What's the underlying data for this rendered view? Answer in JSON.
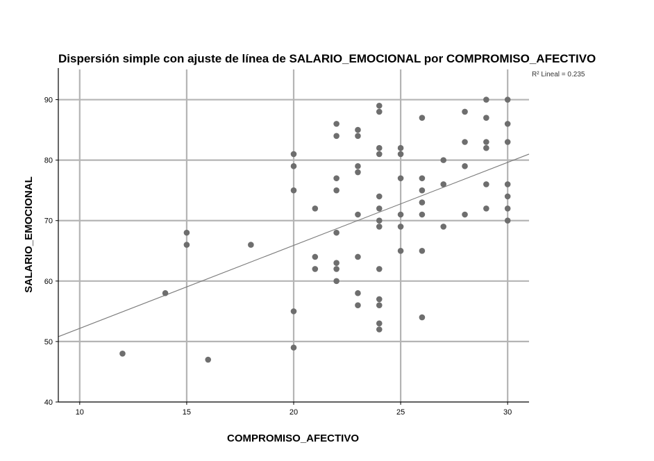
{
  "chart_data": {
    "type": "scatter",
    "title": "Dispersión simple con ajuste de línea de SALARIO_EMOCIONAL por COMPROMISO_AFECTIVO",
    "xlabel": "COMPROMISO_AFECTIVO",
    "ylabel": "SALARIO_EMOCIONAL",
    "xlim": [
      9,
      31
    ],
    "ylim": [
      40,
      95
    ],
    "xticks": [
      "10",
      "15",
      "20",
      "25",
      "30"
    ],
    "yticks": [
      "40",
      "50",
      "60",
      "70",
      "80",
      "90"
    ],
    "grid": true,
    "r2_label": "R² Lineal = 0.235",
    "fit_line": {
      "x": [
        9,
        31
      ],
      "y": [
        50.8,
        81.0
      ]
    },
    "point_color": "#6e6e6e",
    "points": [
      {
        "x": 12,
        "y": 48
      },
      {
        "x": 14,
        "y": 58
      },
      {
        "x": 15,
        "y": 68
      },
      {
        "x": 15,
        "y": 66
      },
      {
        "x": 16,
        "y": 47
      },
      {
        "x": 18,
        "y": 66
      },
      {
        "x": 20,
        "y": 81
      },
      {
        "x": 20,
        "y": 79
      },
      {
        "x": 20,
        "y": 75
      },
      {
        "x": 20,
        "y": 55
      },
      {
        "x": 20,
        "y": 49
      },
      {
        "x": 21,
        "y": 72
      },
      {
        "x": 21,
        "y": 64
      },
      {
        "x": 21,
        "y": 62
      },
      {
        "x": 22,
        "y": 86
      },
      {
        "x": 22,
        "y": 84
      },
      {
        "x": 22,
        "y": 77
      },
      {
        "x": 22,
        "y": 75
      },
      {
        "x": 22,
        "y": 68
      },
      {
        "x": 22,
        "y": 63
      },
      {
        "x": 22,
        "y": 62
      },
      {
        "x": 22,
        "y": 60
      },
      {
        "x": 23,
        "y": 85
      },
      {
        "x": 23,
        "y": 84
      },
      {
        "x": 23,
        "y": 79
      },
      {
        "x": 23,
        "y": 78
      },
      {
        "x": 23,
        "y": 71
      },
      {
        "x": 23,
        "y": 64
      },
      {
        "x": 23,
        "y": 58
      },
      {
        "x": 23,
        "y": 56
      },
      {
        "x": 24,
        "y": 89
      },
      {
        "x": 24,
        "y": 88
      },
      {
        "x": 24,
        "y": 82
      },
      {
        "x": 24,
        "y": 81
      },
      {
        "x": 24,
        "y": 74
      },
      {
        "x": 24,
        "y": 72
      },
      {
        "x": 24,
        "y": 70
      },
      {
        "x": 24,
        "y": 69
      },
      {
        "x": 24,
        "y": 62
      },
      {
        "x": 24,
        "y": 57
      },
      {
        "x": 24,
        "y": 56
      },
      {
        "x": 24,
        "y": 53
      },
      {
        "x": 24,
        "y": 52
      },
      {
        "x": 25,
        "y": 82
      },
      {
        "x": 25,
        "y": 81
      },
      {
        "x": 25,
        "y": 77
      },
      {
        "x": 25,
        "y": 71
      },
      {
        "x": 25,
        "y": 69
      },
      {
        "x": 25,
        "y": 65
      },
      {
        "x": 26,
        "y": 87
      },
      {
        "x": 26,
        "y": 77
      },
      {
        "x": 26,
        "y": 75
      },
      {
        "x": 26,
        "y": 73
      },
      {
        "x": 26,
        "y": 71
      },
      {
        "x": 26,
        "y": 65
      },
      {
        "x": 26,
        "y": 54
      },
      {
        "x": 27,
        "y": 80
      },
      {
        "x": 27,
        "y": 76
      },
      {
        "x": 27,
        "y": 69
      },
      {
        "x": 28,
        "y": 88
      },
      {
        "x": 28,
        "y": 83
      },
      {
        "x": 28,
        "y": 79
      },
      {
        "x": 28,
        "y": 71
      },
      {
        "x": 29,
        "y": 90
      },
      {
        "x": 29,
        "y": 87
      },
      {
        "x": 29,
        "y": 83
      },
      {
        "x": 29,
        "y": 82
      },
      {
        "x": 29,
        "y": 76
      },
      {
        "x": 29,
        "y": 72
      },
      {
        "x": 30,
        "y": 90
      },
      {
        "x": 30,
        "y": 86
      },
      {
        "x": 30,
        "y": 83
      },
      {
        "x": 30,
        "y": 76
      },
      {
        "x": 30,
        "y": 74
      },
      {
        "x": 30,
        "y": 72
      },
      {
        "x": 30,
        "y": 70
      }
    ]
  }
}
